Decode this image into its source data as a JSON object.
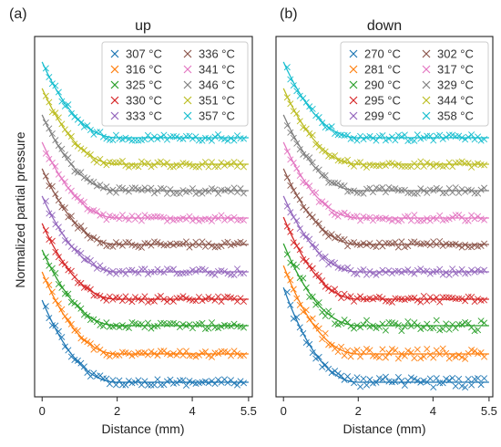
{
  "figure": {
    "ylabel": "Normalized partial pressure"
  },
  "chart_data": [
    {
      "type": "scatter",
      "panel_label": "(a)",
      "title": "up",
      "xlabel": "Distance (mm)",
      "ylabel": "Normalized partial pressure",
      "xlim": [
        -0.2,
        5.6
      ],
      "x_ticks": [
        "0",
        "2",
        "4",
        "5.5"
      ],
      "x_tick_values": [
        0,
        2,
        4,
        5.5
      ],
      "y_ticks_shown": false,
      "grid": false,
      "legend": {
        "placement": "top-right",
        "columns": 2
      },
      "fit_lines": true,
      "series": [
        {
          "name": "307 °C",
          "color": "#1f77b4",
          "start": 2.65,
          "decay_to": 2.0
        },
        {
          "name": "316 °C",
          "color": "#ff7f0e",
          "start": 2.65,
          "decay_to": 2.0
        },
        {
          "name": "325 °C",
          "color": "#2ca02c",
          "start": 2.6,
          "decay_to": 2.0
        },
        {
          "name": "330 °C",
          "color": "#d62728",
          "start": 2.6,
          "decay_to": 2.0
        },
        {
          "name": "333 °C",
          "color": "#9467bd",
          "start": 2.6,
          "decay_to": 2.0
        },
        {
          "name": "336 °C",
          "color": "#8c564b",
          "start": 2.6,
          "decay_to": 2.0
        },
        {
          "name": "341 °C",
          "color": "#e377c2",
          "start": 2.6,
          "decay_to": 2.0
        },
        {
          "name": "346 °C",
          "color": "#7f7f7f",
          "start": 2.6,
          "decay_to": 2.0
        },
        {
          "name": "351 °C",
          "color": "#bcbd22",
          "start": 2.6,
          "decay_to": 2.0
        },
        {
          "name": "357 °C",
          "color": "#17becf",
          "start": 2.6,
          "decay_to": 2.0
        }
      ]
    },
    {
      "type": "scatter",
      "panel_label": "(b)",
      "title": "down",
      "xlabel": "Distance (mm)",
      "ylabel": "",
      "xlim": [
        -0.2,
        5.6
      ],
      "x_ticks": [
        "0",
        "2",
        "4",
        "5.5"
      ],
      "x_tick_values": [
        0,
        2,
        4,
        5.5
      ],
      "y_ticks_shown": false,
      "grid": false,
      "legend": {
        "placement": "top-right",
        "columns": 2
      },
      "fit_lines": true,
      "series": [
        {
          "name": "270 °C",
          "color": "#1f77b4",
          "start": 2.75,
          "decay_to": 2.0
        },
        {
          "name": "281 °C",
          "color": "#ff7f0e",
          "start": 2.7,
          "decay_to": 2.0
        },
        {
          "name": "290 °C",
          "color": "#2ca02c",
          "start": 2.65,
          "decay_to": 2.0
        },
        {
          "name": "295 °C",
          "color": "#d62728",
          "start": 2.65,
          "decay_to": 2.0
        },
        {
          "name": "299 °C",
          "color": "#9467bd",
          "start": 2.6,
          "decay_to": 2.0
        },
        {
          "name": "302 °C",
          "color": "#8c564b",
          "start": 2.6,
          "decay_to": 2.0
        },
        {
          "name": "317 °C",
          "color": "#e377c2",
          "start": 2.6,
          "decay_to": 2.0
        },
        {
          "name": "329 °C",
          "color": "#7f7f7f",
          "start": 2.6,
          "decay_to": 2.0
        },
        {
          "name": "344 °C",
          "color": "#bcbd22",
          "start": 2.6,
          "decay_to": 2.0
        },
        {
          "name": "358 °C",
          "color": "#17becf",
          "start": 2.6,
          "decay_to": 2.0
        }
      ]
    }
  ]
}
